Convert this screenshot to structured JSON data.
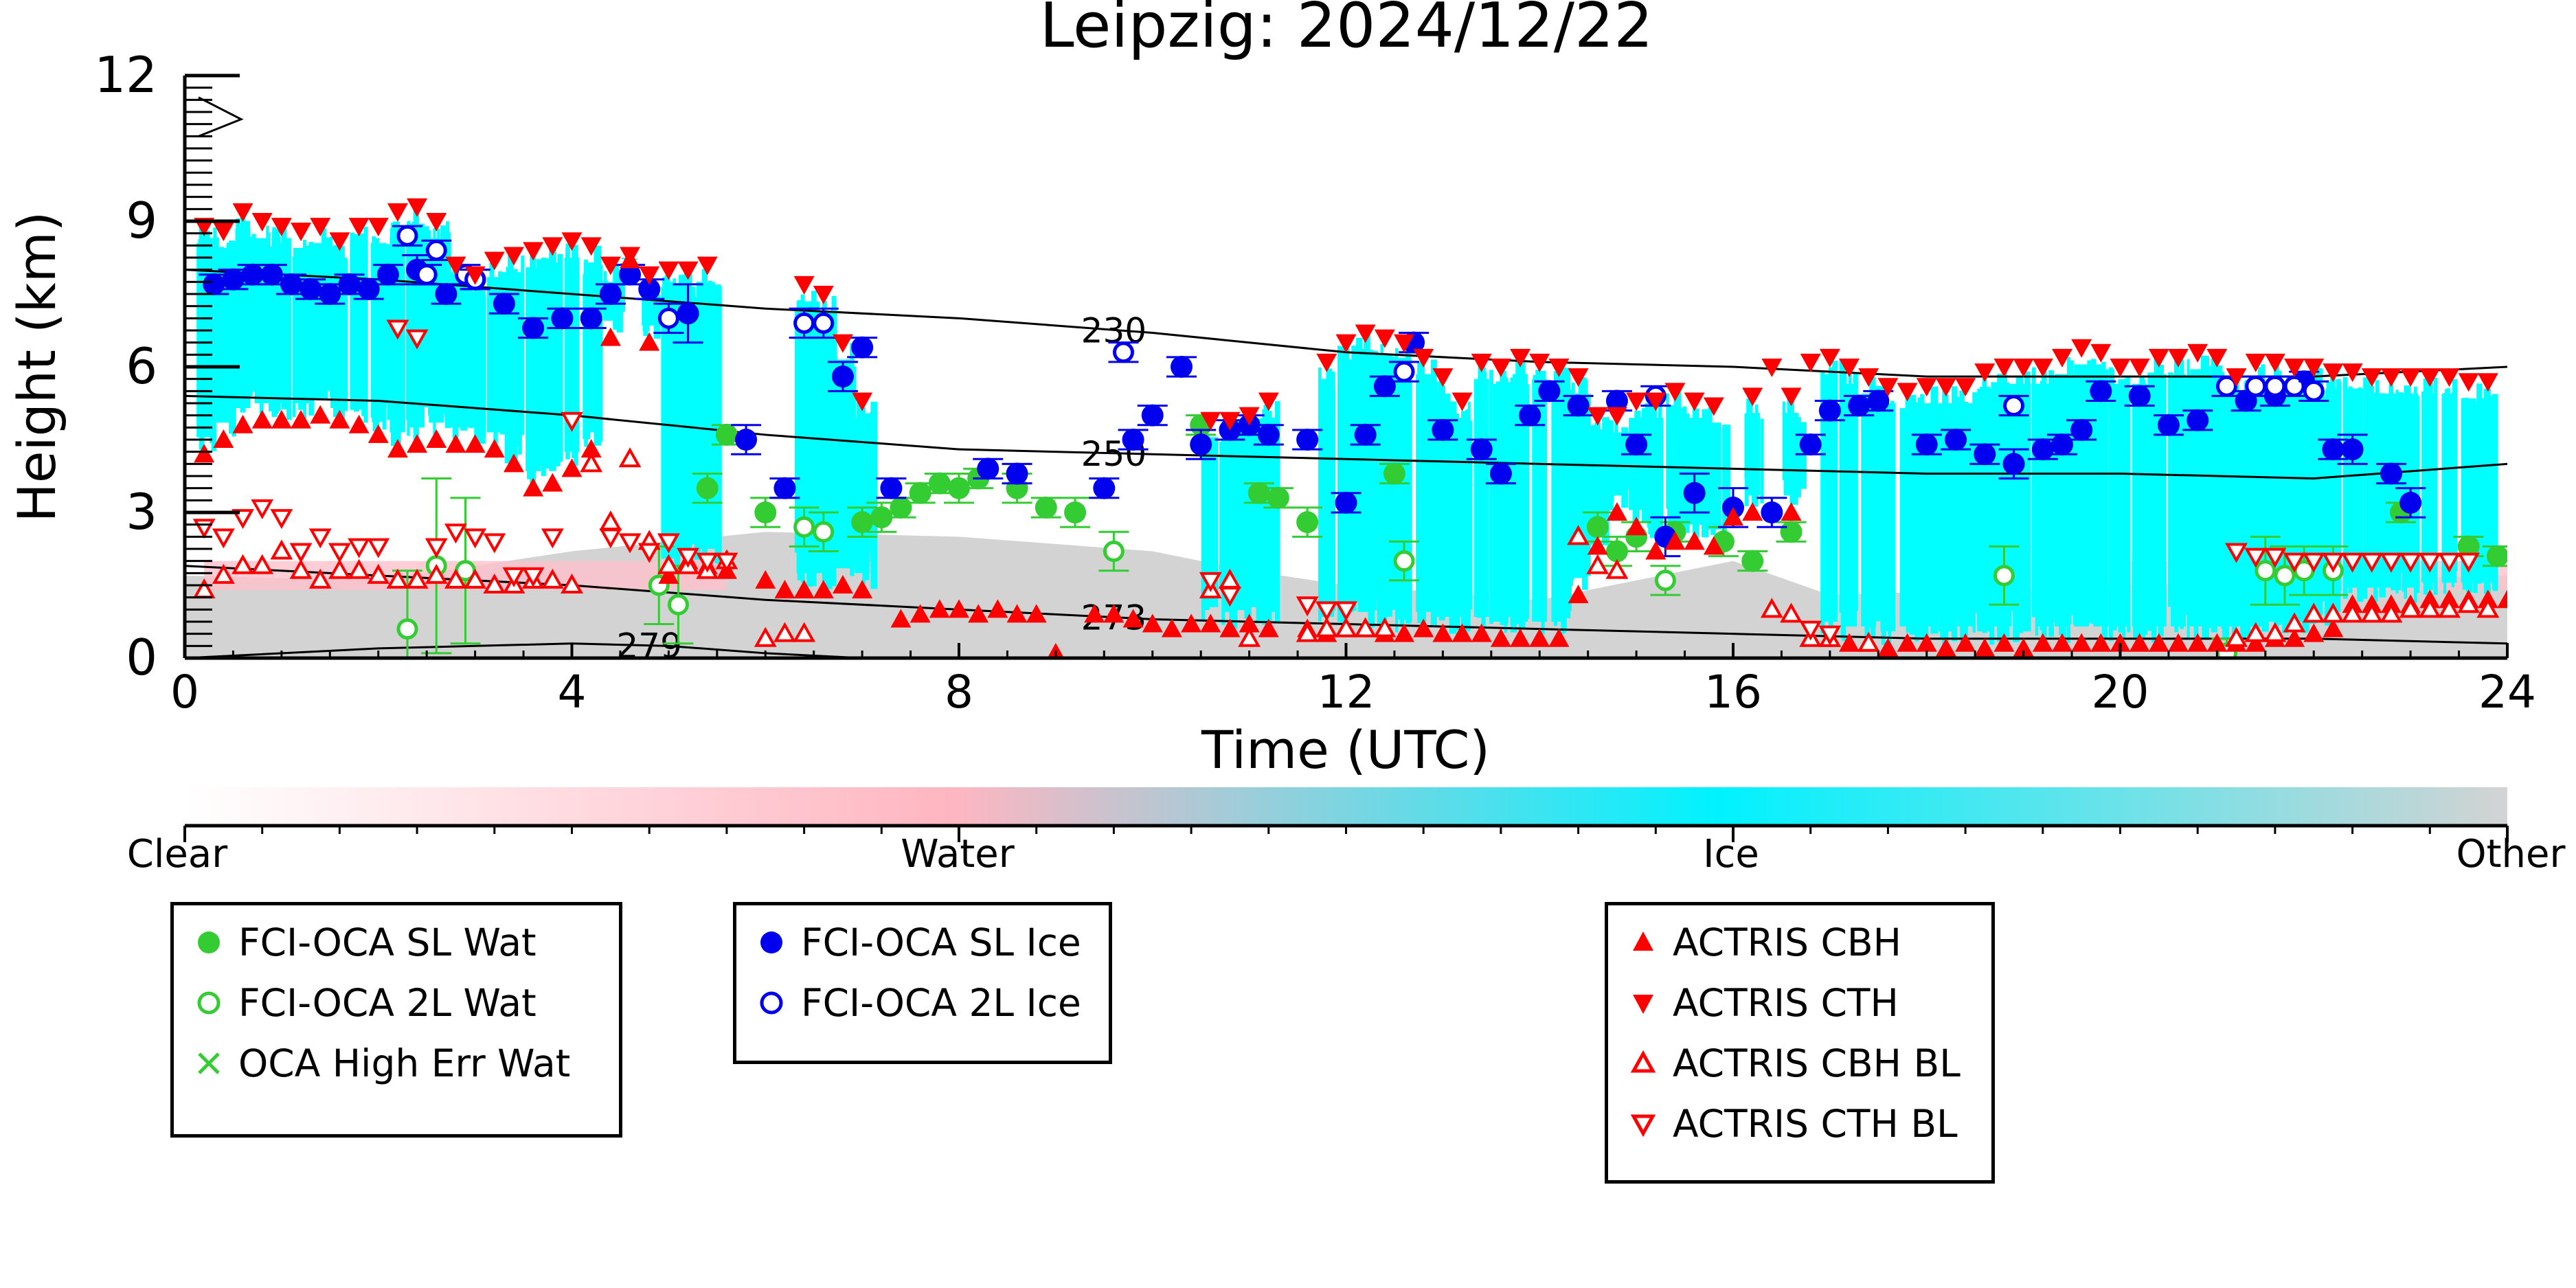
{
  "chart_data": {
    "type": "scatter",
    "title": "Leipzig: 2024/12/22",
    "xlabel": "Time (UTC)",
    "ylabel": "Height (km)",
    "xlim": [
      0,
      24
    ],
    "ylim": [
      0,
      12
    ],
    "xticks": [
      "0",
      "4",
      "8",
      "12",
      "16",
      "20",
      "24"
    ],
    "yticks": [
      "0",
      "3",
      "6",
      "9",
      "12"
    ],
    "temperature_contours": [
      {
        "label": "230",
        "x": [
          0,
          2,
          4,
          6,
          8,
          10,
          12,
          14,
          16,
          18,
          20,
          22,
          24
        ],
        "y": [
          8.0,
          7.8,
          7.5,
          7.2,
          7.0,
          6.7,
          6.3,
          6.1,
          6.0,
          5.8,
          5.8,
          5.8,
          6.0
        ]
      },
      {
        "label": "250",
        "x": [
          0,
          2,
          4,
          6,
          8,
          10,
          12,
          14,
          16,
          18,
          20,
          22,
          24
        ],
        "y": [
          5.4,
          5.3,
          5.0,
          4.6,
          4.3,
          4.2,
          4.1,
          4.0,
          3.9,
          3.8,
          3.8,
          3.7,
          4.0
        ]
      },
      {
        "label": "273",
        "x": [
          0,
          2,
          4,
          6,
          8,
          10,
          12,
          14,
          16,
          18,
          20,
          22,
          24
        ],
        "y": [
          1.9,
          1.7,
          1.5,
          1.2,
          1.0,
          0.8,
          0.7,
          0.6,
          0.5,
          0.4,
          0.4,
          0.4,
          0.3
        ]
      },
      {
        "label": "279",
        "x": [
          0,
          2,
          4,
          5,
          6,
          7
        ],
        "y": [
          0.0,
          0.2,
          0.3,
          0.25,
          0.1,
          0.0
        ]
      }
    ],
    "colorbar": {
      "labels": [
        "Clear",
        "Water",
        "Ice",
        "Other"
      ],
      "colors": [
        "#ffffff",
        "#ffb6c1",
        "#00ffff",
        "#d3d3d3"
      ]
    },
    "background": {
      "water_color": "#ffc0cb",
      "ice_color": "#00ffff",
      "other_color": "#d3d3d3"
    },
    "series": [
      {
        "name": "FCI-OCA SL Wat",
        "marker": "circle-filled",
        "color": "#33cc33",
        "x": [
          5.4,
          5.6,
          6.0,
          7.0,
          7.2,
          7.4,
          7.6,
          7.8,
          8.0,
          8.2,
          8.6,
          8.9,
          9.2,
          10.5,
          11.1,
          11.3,
          11.6,
          12.5,
          14.6,
          14.8,
          15.0,
          15.4,
          15.9,
          16.2,
          16.6,
          22.9,
          23.6,
          23.9
        ],
        "y": [
          3.5,
          4.6,
          3.0,
          2.8,
          2.9,
          3.1,
          3.4,
          3.6,
          3.5,
          3.7,
          3.5,
          3.1,
          3.0,
          4.8,
          3.4,
          3.3,
          2.8,
          3.8,
          2.7,
          2.2,
          2.5,
          2.6,
          2.4,
          2.0,
          2.6,
          3.0,
          2.3,
          2.1
        ],
        "yerr": [
          0.3,
          0.2,
          0.3,
          0.3,
          0.3,
          0.2,
          0.2,
          0.2,
          0.3,
          0.2,
          0.3,
          0.2,
          0.3,
          0.2,
          0.2,
          0.2,
          0.3,
          0.2,
          0.3,
          0.3,
          0.3,
          0.2,
          0.3,
          0.2,
          0.2,
          0.2,
          0.2,
          0.2
        ]
      },
      {
        "name": "FCI-OCA 2L Wat",
        "marker": "circle-open",
        "color": "#33cc33",
        "x": [
          2.3,
          2.6,
          2.9,
          4.9,
          5.1,
          6.4,
          6.6,
          9.6,
          12.6,
          15.3,
          18.8,
          21.1,
          21.5,
          21.7,
          21.9,
          22.2
        ],
        "y": [
          0.6,
          1.9,
          1.8,
          1.5,
          1.1,
          2.7,
          2.6,
          2.2,
          2.0,
          1.6,
          1.7,
          0.1,
          1.8,
          1.7,
          1.8,
          1.8
        ],
        "yerr": [
          1.2,
          1.8,
          1.5,
          0.8,
          0.8,
          0.4,
          0.4,
          0.4,
          0.4,
          0.3,
          0.6,
          0.3,
          0.7,
          0.6,
          0.5,
          0.5
        ]
      },
      {
        "name": "OCA High Err Wat",
        "marker": "x",
        "color": "#33cc33",
        "x": [],
        "y": []
      },
      {
        "name": "FCI-OCA SL Ice",
        "marker": "circle-filled",
        "color": "#0000ee",
        "x": [
          0.3,
          0.5,
          0.7,
          0.9,
          1.1,
          1.3,
          1.5,
          1.7,
          1.9,
          2.1,
          2.4,
          2.7,
          3.0,
          3.3,
          3.6,
          3.9,
          4.2,
          4.4,
          4.6,
          4.8,
          5.2,
          5.8,
          6.2,
          6.8,
          7.0,
          7.3,
          8.3,
          8.6,
          9.5,
          9.8,
          10.0,
          10.3,
          10.5,
          10.8,
          11.0,
          11.2,
          11.6,
          12.0,
          12.2,
          12.4,
          12.7,
          13.0,
          13.4,
          13.6,
          13.9,
          14.1,
          14.4,
          14.8,
          15.0,
          15.3,
          15.6,
          16.0,
          16.4,
          16.8,
          17.0,
          17.3,
          17.5,
          18.0,
          18.3,
          18.6,
          18.9,
          19.2,
          19.4,
          19.6,
          19.8,
          20.2,
          20.5,
          20.8,
          21.3,
          21.6,
          21.9,
          22.2,
          22.4,
          22.8,
          23.0
        ],
        "y": [
          7.7,
          7.8,
          7.9,
          7.9,
          7.7,
          7.6,
          7.5,
          7.7,
          7.6,
          7.9,
          8.0,
          7.5,
          7.8,
          7.3,
          6.8,
          7.0,
          7.0,
          7.5,
          7.9,
          7.6,
          7.1,
          4.5,
          3.5,
          5.8,
          6.4,
          3.5,
          3.9,
          3.8,
          3.5,
          4.5,
          5.0,
          6.0,
          4.4,
          4.7,
          4.8,
          4.6,
          4.5,
          3.2,
          4.6,
          5.6,
          6.5,
          4.7,
          4.3,
          3.8,
          5.0,
          5.5,
          5.2,
          5.3,
          4.4,
          2.5,
          3.4,
          3.1,
          3.0,
          4.4,
          5.1,
          5.2,
          5.3,
          4.4,
          4.5,
          4.2,
          4.0,
          4.3,
          4.4,
          4.7,
          5.5,
          5.4,
          4.8,
          4.9,
          5.3,
          5.4,
          5.7,
          4.3,
          4.3,
          3.8,
          3.2
        ],
        "yerr": [
          0.2,
          0.2,
          0.2,
          0.2,
          0.2,
          0.2,
          0.2,
          0.2,
          0.2,
          0.2,
          0.3,
          0.2,
          0.2,
          0.2,
          0.2,
          0.2,
          0.2,
          0.2,
          0.2,
          0.2,
          0.6,
          0.3,
          0.2,
          0.3,
          0.2,
          0.2,
          0.2,
          0.2,
          0.2,
          0.2,
          0.2,
          0.2,
          0.3,
          0.2,
          0.2,
          0.2,
          0.2,
          0.2,
          0.2,
          0.2,
          0.2,
          0.2,
          0.2,
          0.2,
          0.2,
          0.2,
          0.2,
          0.2,
          0.2,
          0.4,
          0.4,
          0.4,
          0.3,
          0.2,
          0.2,
          0.2,
          0.2,
          0.2,
          0.2,
          0.2,
          0.3,
          0.2,
          0.2,
          0.2,
          0.2,
          0.2,
          0.2,
          0.2,
          0.2,
          0.2,
          0.2,
          0.2,
          0.3,
          0.2,
          0.3
        ]
      },
      {
        "name": "FCI-OCA 2L Ice",
        "marker": "circle-open",
        "color": "#0000ee",
        "x": [
          2.3,
          2.5,
          2.6,
          2.9,
          3.0,
          5.0,
          6.4,
          6.6,
          9.7,
          12.6,
          15.2,
          18.9,
          21.1,
          21.4,
          21.6,
          21.8,
          22.0
        ],
        "y": [
          8.7,
          7.9,
          8.4,
          7.9,
          7.8,
          7.0,
          6.9,
          6.9,
          6.3,
          5.9,
          5.4,
          5.2,
          5.6,
          5.6,
          5.6,
          5.6,
          5.5
        ],
        "yerr": [
          0.2,
          0.2,
          0.2,
          0.2,
          0.2,
          0.3,
          0.3,
          0.3,
          0.2,
          0.2,
          0.2,
          0.2,
          0.2,
          0.2,
          0.2,
          0.2,
          0.2
        ]
      },
      {
        "name": "ACTRIS CBH",
        "marker": "triangle-up-filled",
        "color": "#ff0000",
        "x": [
          0.2,
          0.4,
          0.6,
          0.8,
          1.0,
          1.2,
          1.4,
          1.6,
          1.8,
          2.0,
          2.2,
          2.4,
          2.6,
          2.8,
          3.0,
          3.2,
          3.4,
          3.6,
          3.8,
          4.0,
          4.2,
          4.4,
          4.6,
          4.8,
          5.0,
          5.2,
          5.4,
          5.6,
          6.0,
          6.2,
          6.4,
          6.6,
          6.8,
          7.0,
          7.4,
          7.6,
          7.8,
          8.0,
          8.2,
          8.4,
          8.6,
          8.8,
          9.0,
          9.4,
          9.6,
          9.8,
          10.0,
          10.2,
          10.4,
          10.6,
          10.8,
          11.0,
          11.2,
          11.6,
          11.8,
          12.0,
          12.2,
          12.4,
          12.6,
          12.8,
          13.0,
          13.2,
          13.4,
          13.6,
          13.8,
          14.0,
          14.2,
          14.4,
          14.6,
          14.8,
          15.0,
          15.2,
          15.4,
          15.6,
          15.8,
          16.0,
          16.2,
          16.6,
          17.0,
          17.2,
          17.4,
          17.6,
          17.8,
          18.0,
          18.2,
          18.4,
          18.6,
          18.8,
          19.0,
          19.2,
          19.4,
          19.6,
          19.8,
          20.0,
          20.2,
          20.4,
          20.6,
          20.8,
          21.0,
          21.2,
          21.4,
          21.6,
          21.8,
          22.0,
          22.2,
          22.4,
          22.6,
          22.8,
          23.0,
          23.2,
          23.4,
          23.6,
          23.8,
          24.0
        ],
        "y": [
          4.2,
          4.5,
          4.8,
          4.9,
          4.9,
          4.9,
          5.0,
          4.9,
          4.8,
          4.6,
          4.3,
          4.4,
          4.5,
          4.4,
          4.4,
          4.3,
          4.0,
          3.5,
          3.6,
          3.9,
          4.3,
          6.6,
          8.2,
          6.5,
          1.7,
          2.0,
          1.9,
          1.8,
          1.6,
          1.4,
          1.4,
          1.4,
          1.5,
          1.4,
          0.8,
          0.9,
          1.0,
          1.0,
          0.9,
          1.0,
          0.9,
          0.9,
          0.1,
          0.9,
          0.9,
          0.8,
          0.7,
          0.6,
          0.7,
          0.7,
          0.6,
          0.7,
          0.6,
          0.6,
          0.5,
          0.6,
          0.6,
          0.5,
          0.5,
          0.6,
          0.5,
          0.5,
          0.5,
          0.4,
          0.4,
          0.4,
          0.4,
          1.3,
          2.3,
          3.0,
          2.7,
          2.2,
          2.4,
          2.4,
          2.3,
          2.9,
          3.0,
          3.0,
          0.4,
          0.3,
          0.3,
          0.2,
          0.3,
          0.3,
          0.2,
          0.3,
          0.2,
          0.3,
          0.2,
          0.3,
          0.3,
          0.3,
          0.3,
          0.3,
          0.3,
          0.3,
          0.3,
          0.3,
          0.3,
          0.3,
          0.3,
          0.4,
          0.4,
          0.5,
          0.6,
          1.1,
          1.1,
          1.1,
          1.1,
          1.2,
          1.2,
          1.2,
          1.2,
          1.2
        ]
      },
      {
        "name": "ACTRIS CTH",
        "marker": "triangle-down-filled",
        "color": "#ff0000",
        "x": [
          0.2,
          0.4,
          0.6,
          0.8,
          1.0,
          1.2,
          1.4,
          1.6,
          1.8,
          2.0,
          2.2,
          2.4,
          2.6,
          2.8,
          3.0,
          3.2,
          3.4,
          3.6,
          3.8,
          4.0,
          4.2,
          4.4,
          4.6,
          4.8,
          5.0,
          5.2,
          5.4,
          6.4,
          6.6,
          6.8,
          7.0,
          10.6,
          10.8,
          11.0,
          11.2,
          11.8,
          12.0,
          12.2,
          12.4,
          12.6,
          12.8,
          13.0,
          13.2,
          13.4,
          13.6,
          13.8,
          14.0,
          14.2,
          14.4,
          14.6,
          14.8,
          15.0,
          15.2,
          15.4,
          15.6,
          15.8,
          16.2,
          16.4,
          16.6,
          16.8,
          17.0,
          17.2,
          17.4,
          17.6,
          17.8,
          18.0,
          18.2,
          18.4,
          18.6,
          18.8,
          19.0,
          19.2,
          19.4,
          19.6,
          19.8,
          20.0,
          20.2,
          20.4,
          20.6,
          20.8,
          21.0,
          21.2,
          21.4,
          21.6,
          21.8,
          22.0,
          22.2,
          22.4,
          22.6,
          22.8,
          23.0,
          23.2,
          23.4,
          23.6,
          23.8
        ],
        "y": [
          8.9,
          8.8,
          9.2,
          9.0,
          8.9,
          8.8,
          8.9,
          8.6,
          8.9,
          8.9,
          9.2,
          9.3,
          9.0,
          8.1,
          7.9,
          8.2,
          8.3,
          8.4,
          8.5,
          8.6,
          8.5,
          8.1,
          8.3,
          7.9,
          8.0,
          8.0,
          8.1,
          7.7,
          7.5,
          6.5,
          5.3,
          4.9,
          4.9,
          5.0,
          5.3,
          6.1,
          6.5,
          6.7,
          6.6,
          6.5,
          6.2,
          5.8,
          5.3,
          6.1,
          6.0,
          6.2,
          6.1,
          6.0,
          5.8,
          5.0,
          5.0,
          5.3,
          5.3,
          5.5,
          5.3,
          5.2,
          5.4,
          6.0,
          5.4,
          6.1,
          6.2,
          6.0,
          5.8,
          5.6,
          5.5,
          5.6,
          5.6,
          5.6,
          5.9,
          6.0,
          6.0,
          6.0,
          6.2,
          6.4,
          6.3,
          6.0,
          6.0,
          6.2,
          6.2,
          6.3,
          6.2,
          5.8,
          6.1,
          6.1,
          6.0,
          6.0,
          5.9,
          5.9,
          5.8,
          5.8,
          5.8,
          5.8,
          5.8,
          5.7,
          5.7
        ]
      },
      {
        "name": "ACTRIS CBH BL",
        "marker": "triangle-up-open",
        "color": "#ff0000",
        "x": [
          0.2,
          0.4,
          0.6,
          0.8,
          1.0,
          1.2,
          1.4,
          1.6,
          1.8,
          2.0,
          2.2,
          2.4,
          2.6,
          2.8,
          3.0,
          3.2,
          3.4,
          3.6,
          3.8,
          4.0,
          4.2,
          4.4,
          4.6,
          4.8,
          5.0,
          5.2,
          5.4,
          5.6,
          6.0,
          6.2,
          6.4,
          10.6,
          10.8,
          11.0,
          11.6,
          11.8,
          12.0,
          12.2,
          12.4,
          14.4,
          14.6,
          14.8,
          16.4,
          16.6,
          16.8,
          17.0,
          17.4,
          21.2,
          21.4,
          21.6,
          21.8,
          22.0,
          22.2,
          22.4,
          22.6,
          22.8,
          23.0,
          23.2,
          23.4,
          23.6,
          23.8
        ],
        "y": [
          1.4,
          1.7,
          1.9,
          1.9,
          2.2,
          1.8,
          1.6,
          1.8,
          1.8,
          1.7,
          1.6,
          1.6,
          1.7,
          1.6,
          1.6,
          1.5,
          1.5,
          1.6,
          1.6,
          1.5,
          4.0,
          2.8,
          4.1,
          2.4,
          1.9,
          1.9,
          1.8,
          2.0,
          0.4,
          0.5,
          0.5,
          1.4,
          1.6,
          0.4,
          0.5,
          0.6,
          0.6,
          0.6,
          0.6,
          2.5,
          1.9,
          1.8,
          1.0,
          0.9,
          0.4,
          0.4,
          0.3,
          0.4,
          0.5,
          0.5,
          0.7,
          0.9,
          0.9,
          0.9,
          0.9,
          0.9,
          1.0,
          1.0,
          1.0,
          1.1,
          1.0
        ]
      },
      {
        "name": "ACTRIS CTH BL",
        "marker": "triangle-down-open",
        "color": "#ff0000",
        "x": [
          0.2,
          0.4,
          0.6,
          0.8,
          1.0,
          1.2,
          1.4,
          1.6,
          1.8,
          2.0,
          2.2,
          2.4,
          2.6,
          2.8,
          3.0,
          3.2,
          3.4,
          3.6,
          3.8,
          4.0,
          4.4,
          4.6,
          4.8,
          5.0,
          5.2,
          5.4,
          5.6,
          10.6,
          10.8,
          11.6,
          11.8,
          12.0,
          16.8,
          17.0,
          21.2,
          21.4,
          21.6,
          21.8,
          22.0,
          22.2,
          22.4,
          22.6,
          22.8,
          23.0,
          23.2,
          23.4,
          23.6
        ],
        "y": [
          2.7,
          2.5,
          2.9,
          3.1,
          2.9,
          2.2,
          2.5,
          2.2,
          2.3,
          2.3,
          6.8,
          6.6,
          2.3,
          2.6,
          2.5,
          2.4,
          1.7,
          1.7,
          2.5,
          4.9,
          2.5,
          2.4,
          2.2,
          2.4,
          2.1,
          2.0,
          2.0,
          1.6,
          1.3,
          1.1,
          1.0,
          1.0,
          0.6,
          0.5,
          2.2,
          2.1,
          2.1,
          2.0,
          2.0,
          2.0,
          2.0,
          2.0,
          2.0,
          2.0,
          2.0,
          2.0,
          2.0
        ]
      }
    ]
  }
}
